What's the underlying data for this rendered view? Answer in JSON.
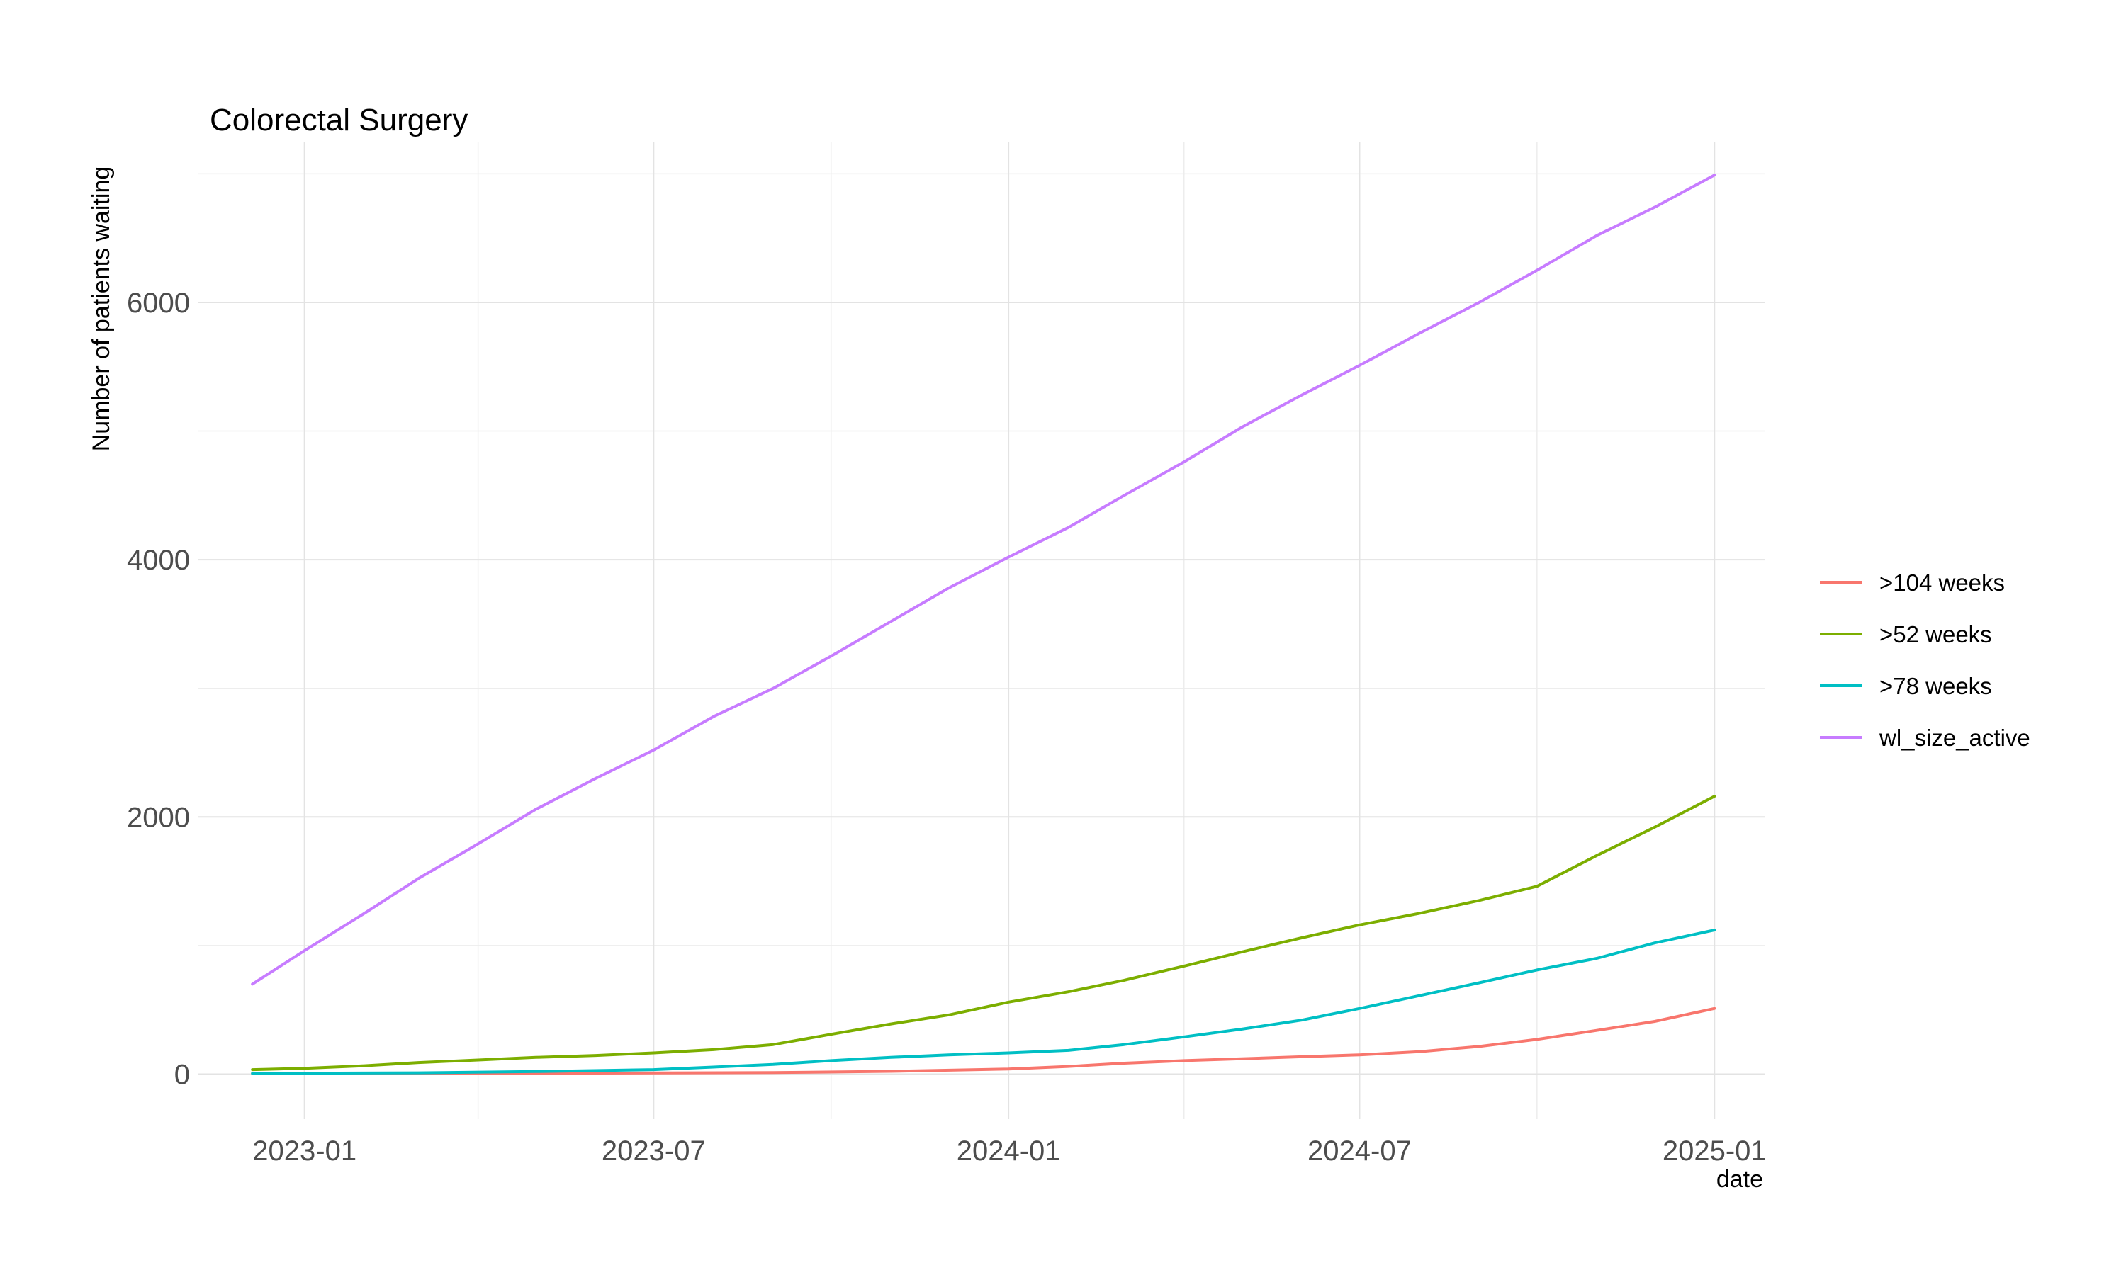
{
  "chart_data": {
    "type": "line",
    "title": "Colorectal Surgery",
    "xlabel": "date",
    "ylabel": "Number of patients waiting",
    "x_type": "date",
    "xlim": [
      "2022-11-07",
      "2025-01-27"
    ],
    "ylim": [
      -350,
      7250
    ],
    "x_ticks": [
      {
        "date": "2023-01-01",
        "label": "2023-01"
      },
      {
        "date": "2023-07-01",
        "label": "2023-07"
      },
      {
        "date": "2024-01-01",
        "label": "2024-01"
      },
      {
        "date": "2024-07-01",
        "label": "2024-07"
      },
      {
        "date": "2025-01-01",
        "label": "2025-01"
      }
    ],
    "x_minor_ticks": [
      "2022-10-01",
      "2023-04-01",
      "2023-10-01",
      "2024-04-01",
      "2024-10-01"
    ],
    "y_ticks": [
      0,
      2000,
      4000,
      6000
    ],
    "y_minor_ticks": [
      1000,
      3000,
      5000,
      7000
    ],
    "grid": true,
    "legend_position": "right",
    "series": [
      {
        "name": ">104 weeks",
        "color": "#F8766D",
        "points": [
          [
            "2022-12-05",
            5
          ],
          [
            "2023-03-01",
            5
          ],
          [
            "2023-06-01",
            8
          ],
          [
            "2023-09-01",
            12
          ],
          [
            "2023-11-01",
            22
          ],
          [
            "2024-01-01",
            40
          ],
          [
            "2024-02-01",
            60
          ],
          [
            "2024-03-01",
            85
          ],
          [
            "2024-04-01",
            105
          ],
          [
            "2024-05-01",
            120
          ],
          [
            "2024-06-01",
            135
          ],
          [
            "2024-07-01",
            150
          ],
          [
            "2024-08-01",
            175
          ],
          [
            "2024-09-01",
            215
          ],
          [
            "2024-10-01",
            270
          ],
          [
            "2024-11-01",
            340
          ],
          [
            "2024-12-01",
            410
          ],
          [
            "2025-01-01",
            510
          ]
        ]
      },
      {
        "name": ">52 weeks",
        "color": "#7CAE00",
        "points": [
          [
            "2022-12-05",
            35
          ],
          [
            "2023-01-01",
            45
          ],
          [
            "2023-02-01",
            65
          ],
          [
            "2023-03-01",
            90
          ],
          [
            "2023-04-01",
            110
          ],
          [
            "2023-05-01",
            130
          ],
          [
            "2023-06-01",
            145
          ],
          [
            "2023-07-01",
            165
          ],
          [
            "2023-08-01",
            190
          ],
          [
            "2023-09-01",
            230
          ],
          [
            "2023-10-01",
            310
          ],
          [
            "2023-11-01",
            390
          ],
          [
            "2023-12-01",
            460
          ],
          [
            "2024-01-01",
            560
          ],
          [
            "2024-02-01",
            640
          ],
          [
            "2024-03-01",
            730
          ],
          [
            "2024-04-01",
            840
          ],
          [
            "2024-05-01",
            950
          ],
          [
            "2024-06-01",
            1060
          ],
          [
            "2024-07-01",
            1160
          ],
          [
            "2024-08-01",
            1250
          ],
          [
            "2024-09-01",
            1350
          ],
          [
            "2024-10-01",
            1460
          ],
          [
            "2024-11-01",
            1700
          ],
          [
            "2024-12-01",
            1920
          ],
          [
            "2025-01-01",
            2160
          ]
        ]
      },
      {
        "name": ">78 weeks",
        "color": "#00BFC4",
        "points": [
          [
            "2022-12-05",
            5
          ],
          [
            "2023-03-01",
            10
          ],
          [
            "2023-05-01",
            20
          ],
          [
            "2023-07-01",
            35
          ],
          [
            "2023-08-01",
            55
          ],
          [
            "2023-09-01",
            75
          ],
          [
            "2023-10-01",
            105
          ],
          [
            "2023-11-01",
            130
          ],
          [
            "2023-12-01",
            150
          ],
          [
            "2024-01-01",
            165
          ],
          [
            "2024-02-01",
            185
          ],
          [
            "2024-03-01",
            230
          ],
          [
            "2024-04-01",
            290
          ],
          [
            "2024-05-01",
            350
          ],
          [
            "2024-06-01",
            420
          ],
          [
            "2024-07-01",
            510
          ],
          [
            "2024-08-01",
            610
          ],
          [
            "2024-09-01",
            710
          ],
          [
            "2024-10-01",
            810
          ],
          [
            "2024-11-01",
            900
          ],
          [
            "2024-12-01",
            1020
          ],
          [
            "2025-01-01",
            1120
          ]
        ]
      },
      {
        "name": "wl_size_active",
        "color": "#C77CFF",
        "points": [
          [
            "2022-12-05",
            700
          ],
          [
            "2023-01-01",
            960
          ],
          [
            "2023-02-01",
            1250
          ],
          [
            "2023-03-01",
            1520
          ],
          [
            "2023-04-01",
            1790
          ],
          [
            "2023-05-01",
            2060
          ],
          [
            "2023-06-01",
            2300
          ],
          [
            "2023-07-01",
            2520
          ],
          [
            "2023-08-01",
            2780
          ],
          [
            "2023-09-01",
            3000
          ],
          [
            "2023-10-01",
            3250
          ],
          [
            "2023-11-01",
            3520
          ],
          [
            "2023-12-01",
            3780
          ],
          [
            "2024-01-01",
            4020
          ],
          [
            "2024-02-01",
            4250
          ],
          [
            "2024-03-01",
            4500
          ],
          [
            "2024-04-01",
            4760
          ],
          [
            "2024-05-01",
            5030
          ],
          [
            "2024-06-01",
            5280
          ],
          [
            "2024-07-01",
            5510
          ],
          [
            "2024-08-01",
            5760
          ],
          [
            "2024-09-01",
            6000
          ],
          [
            "2024-10-01",
            6250
          ],
          [
            "2024-11-01",
            6520
          ],
          [
            "2024-12-01",
            6740
          ],
          [
            "2025-01-01",
            6990
          ]
        ]
      }
    ]
  }
}
